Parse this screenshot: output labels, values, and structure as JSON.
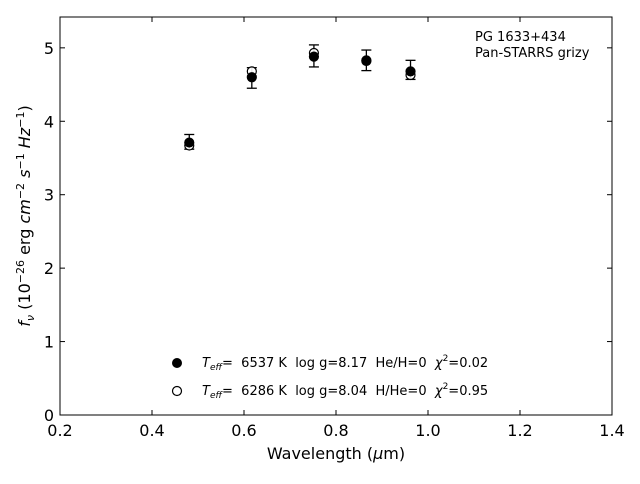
{
  "chart_data": {
    "type": "scatter",
    "annotation": {
      "line1": "PG 1633+434",
      "line2": "Pan-STARRS grizy"
    },
    "xlabel": "Wavelength (μm)",
    "ylabel": "fν (10⁻²⁶ erg cm⁻² s⁻¹ Hz⁻¹)",
    "xlim": [
      0.2,
      1.4
    ],
    "ylim": [
      0,
      5.42
    ],
    "xticks": [
      "0.2",
      "0.4",
      "0.6",
      "0.8",
      "1.0",
      "1.2",
      "1.4"
    ],
    "yticks": [
      "0",
      "1",
      "2",
      "3",
      "4",
      "5"
    ],
    "grid": false,
    "legend_position": "lower-center",
    "observed": {
      "x": [
        0.481,
        0.617,
        0.752,
        0.866,
        0.962
      ],
      "y": [
        3.72,
        4.59,
        4.89,
        4.83,
        4.7
      ],
      "err": [
        0.1,
        0.14,
        0.15,
        0.14,
        0.13
      ]
    },
    "series": [
      {
        "name": "Teff=  6537 K  log g=8.17  He/H=0  χ²=0.02",
        "marker": "filled-circle",
        "x": [
          0.481,
          0.617,
          0.752,
          0.866,
          0.962
        ],
        "y": [
          3.71,
          4.6,
          4.88,
          4.83,
          4.68
        ]
      },
      {
        "name": "Teff=  6286 K  log g=8.04  H/He=0  χ²=0.95",
        "marker": "open-circle",
        "x": [
          0.481,
          0.617,
          0.752,
          0.866,
          0.962
        ],
        "y": [
          3.67,
          4.68,
          4.93,
          4.82,
          4.63
        ]
      }
    ],
    "legend": [
      {
        "teff_value": "6537 K",
        "logg": "log g=8.17",
        "comp": "He/H=0",
        "chi_value": "=0.02"
      },
      {
        "teff_value": "6286 K",
        "logg": "log g=8.04",
        "comp": "H/He=0",
        "chi_value": "=0.95"
      }
    ]
  }
}
